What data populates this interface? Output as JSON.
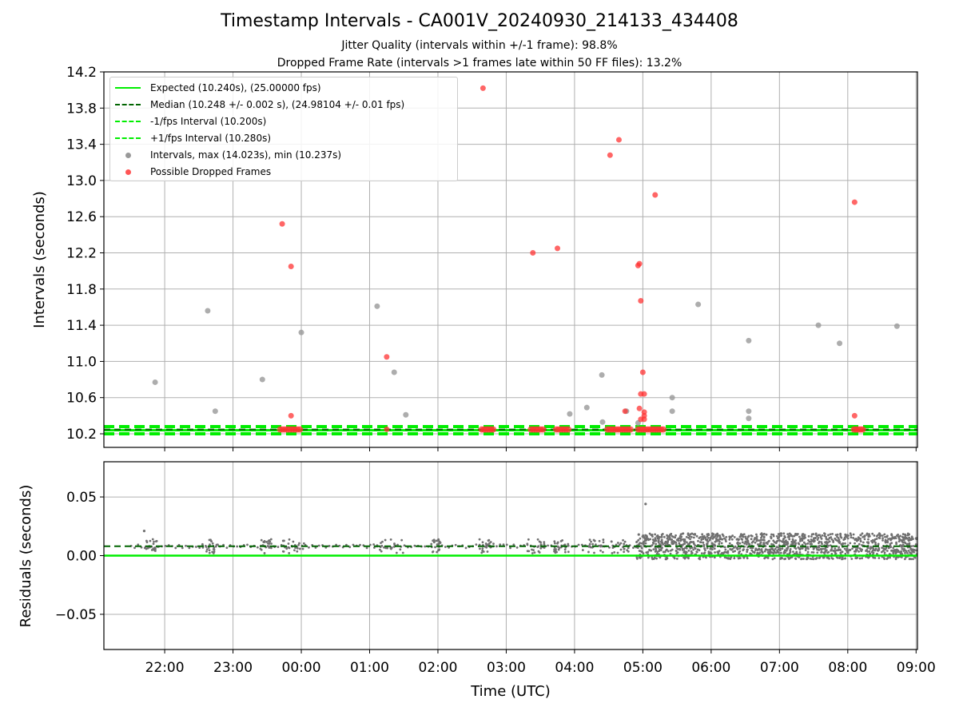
{
  "chart_data": {
    "type": "scatter",
    "title": "Timestamp Intervals - CA001V_20240930_214133_434408",
    "subtitle_1": "Jitter Quality (intervals within +/-1 frame): 98.8%",
    "subtitle_2": "Dropped Frame Rate (intervals >1 frames late within 50 FF files): 13.2%",
    "xlabel": "Time (UTC)",
    "x_ticks": [
      "22:00",
      "23:00",
      "00:00",
      "01:00",
      "02:00",
      "03:00",
      "04:00",
      "05:00",
      "06:00",
      "07:00",
      "08:00",
      "09:00"
    ],
    "x_tick_hours": [
      22,
      23,
      24,
      25,
      26,
      27,
      28,
      29,
      30,
      31,
      32,
      33
    ],
    "xlim_hours": [
      21.11,
      33.02
    ],
    "grid": true,
    "legend_position": "top-left",
    "colors": {
      "expected": "#00ee00",
      "median": "#006400",
      "interval_points": "#999999",
      "dropped": "#ff3333",
      "residuals": "#707070",
      "grid": "#b0b0b0"
    },
    "top_panel": {
      "ylabel": "Intervals (seconds)",
      "ylim": [
        10.05,
        14.2
      ],
      "y_ticks": [
        "10.2",
        "10.6",
        "11.0",
        "11.4",
        "11.8",
        "12.2",
        "12.6",
        "13.0",
        "13.4",
        "13.8",
        "14.2"
      ],
      "y_tick_values": [
        10.2,
        10.6,
        11.0,
        11.4,
        11.8,
        12.2,
        12.6,
        13.0,
        13.4,
        13.8,
        14.2
      ],
      "expected_interval": 10.24,
      "median_interval": 10.248,
      "minus_1_fps_interval": 10.2,
      "plus_1_fps_interval": 10.28,
      "legend": [
        "Expected (10.240s), (25.00000 fps)",
        "Median (10.248 +/- 0.002 s), (24.98104 +/- 0.01 fps)",
        "-1/fps Interval (10.200s)",
        "+1/fps Interval (10.280s)",
        "Intervals, max (14.023s), min (10.237s)",
        "Possible Dropped Frames"
      ],
      "interval_points": [
        [
          21.86,
          10.77
        ],
        [
          22.63,
          11.56
        ],
        [
          22.74,
          10.45
        ],
        [
          23.43,
          10.8
        ],
        [
          24.0,
          11.32
        ],
        [
          25.11,
          11.61
        ],
        [
          25.36,
          10.88
        ],
        [
          25.53,
          10.41
        ],
        [
          27.93,
          10.42
        ],
        [
          28.18,
          10.49
        ],
        [
          28.4,
          10.85
        ],
        [
          28.41,
          10.33
        ],
        [
          28.76,
          10.45
        ],
        [
          28.93,
          10.32
        ],
        [
          29.43,
          10.6
        ],
        [
          29.43,
          10.45
        ],
        [
          29.81,
          11.63
        ],
        [
          30.55,
          11.23
        ],
        [
          30.55,
          10.45
        ],
        [
          30.55,
          10.37
        ],
        [
          31.57,
          11.4
        ],
        [
          31.88,
          11.2
        ],
        [
          32.72,
          11.39
        ]
      ],
      "dropped_points": [
        [
          23.72,
          12.52
        ],
        [
          23.85,
          12.05
        ],
        [
          23.85,
          10.4
        ],
        [
          25.25,
          11.05
        ],
        [
          25.25,
          10.25
        ],
        [
          26.66,
          14.02
        ],
        [
          27.39,
          12.2
        ],
        [
          27.75,
          12.25
        ],
        [
          28.52,
          13.28
        ],
        [
          28.65,
          13.45
        ],
        [
          28.74,
          10.45
        ],
        [
          28.93,
          12.06
        ],
        [
          28.95,
          12.08
        ],
        [
          28.97,
          11.67
        ],
        [
          28.95,
          10.48
        ],
        [
          28.97,
          10.64
        ],
        [
          29.02,
          10.64
        ],
        [
          29.0,
          10.88
        ],
        [
          29.02,
          10.44
        ],
        [
          29.02,
          10.4
        ],
        [
          29.02,
          10.36
        ],
        [
          28.97,
          10.36
        ],
        [
          29.18,
          12.84
        ],
        [
          32.1,
          12.76
        ],
        [
          32.1,
          10.4
        ]
      ],
      "dropped_baseline_ranges": [
        [
          23.69,
          23.98
        ],
        [
          26.64,
          26.81
        ],
        [
          27.36,
          27.54
        ],
        [
          27.73,
          27.91
        ],
        [
          28.48,
          28.82
        ],
        [
          28.93,
          29.3
        ],
        [
          32.09,
          32.22
        ]
      ],
      "dropped_baseline_value": 10.248
    },
    "bottom_panel": {
      "ylabel": "Residuals (seconds)",
      "ylim": [
        -0.08,
        0.08
      ],
      "y_ticks": [
        "0.05",
        "0.00",
        "−0.05"
      ],
      "y_tick_values": [
        0.05,
        0.0,
        -0.05
      ],
      "zero_line": 0.0,
      "median_residual": 0.008,
      "residual_range": [
        -0.01,
        0.022
      ],
      "outliers": [
        [
          21.7,
          0.021
        ],
        [
          29.04,
          0.044
        ],
        [
          28.94,
          0.018
        ]
      ]
    }
  }
}
